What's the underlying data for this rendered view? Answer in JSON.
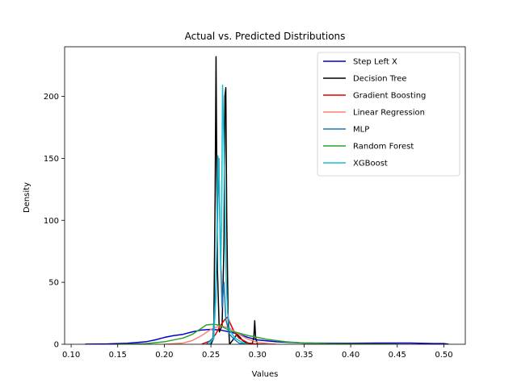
{
  "chart_data": {
    "type": "line",
    "title": "Actual vs. Predicted Distributions",
    "xlabel": "Values",
    "ylabel": "Density",
    "xlim": [
      0.093,
      0.523
    ],
    "ylim": [
      0,
      240
    ],
    "xticks": [
      0.1,
      0.15,
      0.2,
      0.25,
      0.3,
      0.35,
      0.4,
      0.45,
      0.5
    ],
    "yticks": [
      0,
      50,
      100,
      150,
      200
    ],
    "grid": false,
    "legend_position": "top-right",
    "series": [
      {
        "name": "Step Left X",
        "color": "#0000cc",
        "x": [
          0.115,
          0.14,
          0.16,
          0.18,
          0.19,
          0.2,
          0.21,
          0.22,
          0.23,
          0.24,
          0.25,
          0.26,
          0.27,
          0.28,
          0.29,
          0.3,
          0.32,
          0.35,
          0.4,
          0.43,
          0.46,
          0.49,
          0.5,
          0.505
        ],
        "y": [
          0.1,
          0.3,
          0.8,
          2,
          3.5,
          5.5,
          7,
          8,
          10,
          11.5,
          12,
          11.5,
          10,
          8,
          5.5,
          3.5,
          2,
          1,
          0.8,
          1,
          1,
          0.6,
          0.6,
          0.1
        ]
      },
      {
        "name": "Decision Tree",
        "color": "#000000",
        "x": [
          0.245,
          0.25,
          0.253,
          0.2545,
          0.2555,
          0.257,
          0.259,
          0.262,
          0.264,
          0.265,
          0.266,
          0.267,
          0.2685,
          0.27,
          0.273,
          0.278,
          0.282,
          0.284,
          0.286,
          0.29,
          0.294,
          0.296,
          0.297,
          0.298,
          0.3,
          0.31
        ],
        "y": [
          0,
          0,
          5,
          120,
          232,
          60,
          10,
          15,
          80,
          200,
          207,
          100,
          20,
          0,
          3,
          8,
          5,
          3,
          2,
          0,
          0,
          5,
          19,
          5,
          0,
          0
        ]
      },
      {
        "name": "Gradient Boosting",
        "color": "#dd0000",
        "x": [
          0.24,
          0.25,
          0.255,
          0.26,
          0.265,
          0.268,
          0.27,
          0.275,
          0.28,
          0.29,
          0.3
        ],
        "y": [
          0,
          3,
          8,
          15,
          20,
          22,
          18,
          10,
          5,
          1,
          0
        ]
      },
      {
        "name": "Linear Regression",
        "color": "#fa8072",
        "x": [
          0.2,
          0.22,
          0.23,
          0.24,
          0.25,
          0.26,
          0.27,
          0.28,
          0.29,
          0.3,
          0.32
        ],
        "y": [
          0,
          1,
          3,
          7,
          12,
          15,
          13,
          8,
          4,
          1.5,
          0
        ]
      },
      {
        "name": "MLP",
        "color": "#1f77b4",
        "x": [
          0.245,
          0.252,
          0.255,
          0.257,
          0.2585,
          0.26,
          0.262,
          0.264,
          0.266,
          0.27,
          0.275,
          0.28,
          0.29
        ],
        "y": [
          0,
          5,
          40,
          100,
          150,
          80,
          30,
          50,
          20,
          8,
          4,
          1,
          0
        ]
      },
      {
        "name": "Random Forest",
        "color": "#2ca02c",
        "x": [
          0.15,
          0.18,
          0.2,
          0.22,
          0.23,
          0.24,
          0.245,
          0.25,
          0.255,
          0.26,
          0.265,
          0.27,
          0.28,
          0.29,
          0.3,
          0.31,
          0.32,
          0.33,
          0.35,
          0.38,
          0.4,
          0.45
        ],
        "y": [
          0,
          0.5,
          2,
          5,
          8,
          13,
          15.5,
          16,
          16,
          15,
          13,
          11,
          9,
          7,
          5.5,
          4,
          3,
          2,
          1,
          0.5,
          0.3,
          0
        ]
      },
      {
        "name": "XGBoost",
        "color": "#17becf",
        "x": [
          0.248,
          0.253,
          0.2555,
          0.2575,
          0.259,
          0.2605,
          0.2615,
          0.2625,
          0.2635,
          0.2645,
          0.2655,
          0.2665,
          0.268,
          0.27,
          0.273,
          0.276,
          0.28,
          0.285,
          0.29
        ],
        "y": [
          0,
          5,
          40,
          152,
          130,
          60,
          100,
          209,
          180,
          140,
          90,
          50,
          25,
          12,
          8,
          5,
          3,
          1,
          0
        ]
      }
    ]
  }
}
